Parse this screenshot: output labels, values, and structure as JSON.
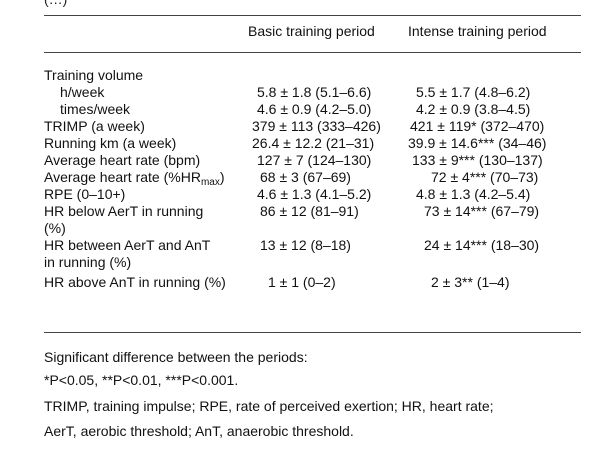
{
  "fragment_top": "(…)",
  "columns": {
    "basic": "Basic training period",
    "intense": "Intense training period"
  },
  "rows": [
    {
      "label": "Training volume",
      "basic": "",
      "intense": "",
      "indent": false
    },
    {
      "label": "h/week",
      "basic": "5.8 ± 1.8 (5.1–6.6)",
      "intense": "5.5 ± 1.7 (4.8–6.2)",
      "indent": true
    },
    {
      "label": "times/week",
      "basic": "4.6 ± 0.9 (4.2–5.0)",
      "intense": "4.2 ± 0.9 (3.8–4.5)",
      "indent": true
    },
    {
      "label": "TRIMP (a week)",
      "basic": "379 ± 113 (333–426)",
      "intense": "421 ± 119* (372–470)",
      "indent": false
    },
    {
      "label": "Running km (a week)",
      "basic": "26.4 ± 12.2 (21–31)",
      "intense": "39.9 ± 14.6*** (34–46)",
      "indent": false
    },
    {
      "label": "Average heart rate (bpm)",
      "basic": "127 ± 7 (124–130)",
      "intense": "133 ± 9*** (130–137)",
      "indent": false
    },
    {
      "label": "Average heart rate (%HR",
      "label_sub": "max",
      "label_end": ")",
      "basic": "68 ± 3 (67–69)",
      "intense": "72 ± 4*** (70–73)",
      "indent": false
    },
    {
      "label": "RPE (0–10+)",
      "basic": "4.6 ± 1.3 (4.1–5.2)",
      "intense": "4.8 ± 1.3 (4.2–5.4)",
      "indent": false
    },
    {
      "label": "HR below AerT in running",
      "label2": "(%)",
      "basic": "86 ± 12 (81–91)",
      "intense": "73 ± 14*** (67–79)",
      "indent": false
    },
    {
      "label": "HR between AerT and AnT",
      "label2": "in running (%)",
      "basic": "13 ± 12 (8–18)",
      "intense": "24 ± 14*** (18–30)",
      "indent": false
    },
    {
      "label": "HR above AnT in running (%)",
      "basic": "1 ± 1 (0–2)",
      "intense": "2 ± 3** (1–4)",
      "indent": false
    }
  ],
  "footnotes": {
    "significance_title": "Significant difference between the periods:",
    "significance_levels": "*P<0.05, **P<0.01, ***P<0.001.",
    "abbrev_line1": "TRIMP, training impulse; RPE, rate of perceived exertion; HR, heart rate;",
    "abbrev_line2": "AerT, aerobic threshold; AnT, anaerobic threshold."
  }
}
